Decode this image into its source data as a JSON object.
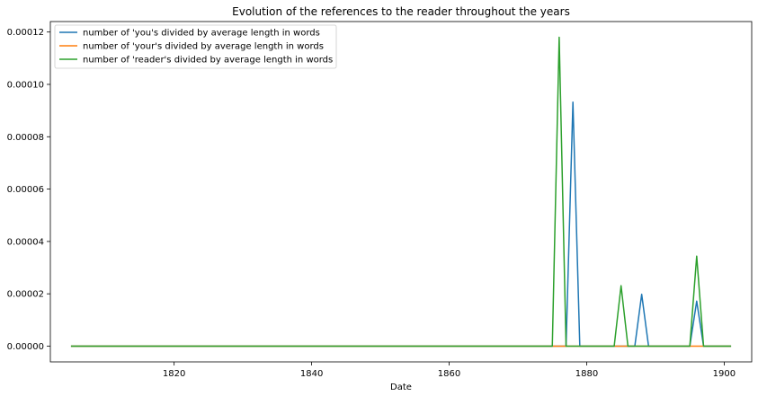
{
  "chart_data": {
    "type": "line",
    "title": "Evolution of the references to the reader throughout the years",
    "xlabel": "Date",
    "ylabel": "",
    "xlim": [
      1802,
      1904
    ],
    "ylim": [
      -6e-06,
      0.000124
    ],
    "xticks": [
      1820,
      1840,
      1860,
      1880,
      1900
    ],
    "yticks": [
      0,
      2e-05,
      4e-05,
      6e-05,
      8e-05,
      0.0001,
      0.00012
    ],
    "ytick_labels": [
      "0.00000",
      "0.00002",
      "0.00004",
      "0.00006",
      "0.00008",
      "0.00010",
      "0.00012"
    ],
    "grid": false,
    "legend_position": "top-left",
    "series": [
      {
        "name": "number of 'you's divided by average length in words",
        "color": "#1f77b4",
        "points": [
          [
            1805,
            0
          ],
          [
            1875,
            0
          ],
          [
            1876,
            0
          ],
          [
            1877,
            0
          ],
          [
            1878,
            9.32e-05
          ],
          [
            1879,
            0
          ],
          [
            1885,
            0
          ],
          [
            1886,
            0
          ],
          [
            1887,
            0
          ],
          [
            1888,
            1.98e-05
          ],
          [
            1889,
            0
          ],
          [
            1895,
            0
          ],
          [
            1896,
            1.72e-05
          ],
          [
            1897,
            0
          ],
          [
            1901,
            0
          ]
        ]
      },
      {
        "name": "number of 'your's divided by average length in words",
        "color": "#ff7f0e",
        "points": [
          [
            1805,
            0
          ],
          [
            1901,
            0
          ]
        ]
      },
      {
        "name": "number of 'reader's divided by average length in words",
        "color": "#2ca02c",
        "points": [
          [
            1805,
            0
          ],
          [
            1875,
            0
          ],
          [
            1876,
            0.000118
          ],
          [
            1877,
            0
          ],
          [
            1884,
            0
          ],
          [
            1885,
            2.31e-05
          ],
          [
            1886,
            0
          ],
          [
            1895,
            0
          ],
          [
            1896,
            3.44e-05
          ],
          [
            1897,
            0
          ],
          [
            1901,
            0
          ]
        ]
      }
    ]
  }
}
